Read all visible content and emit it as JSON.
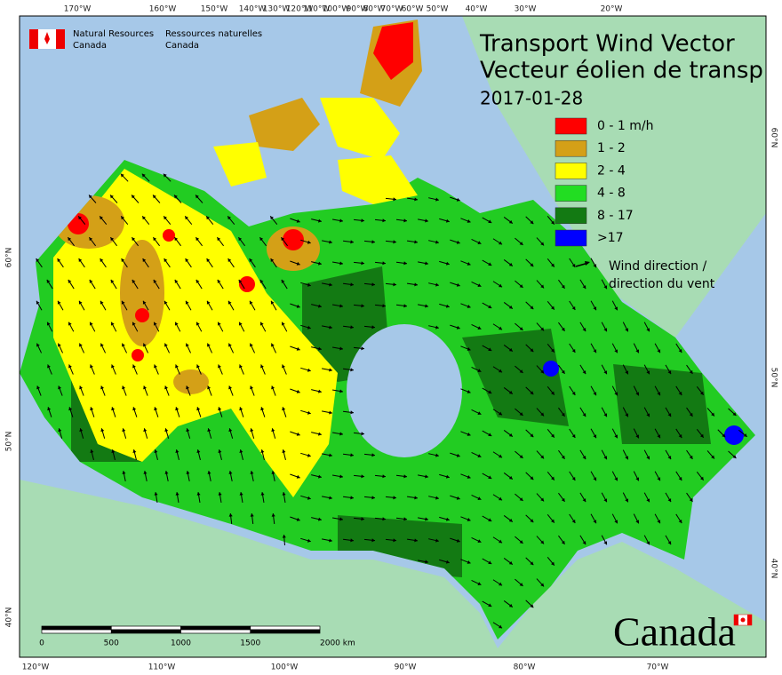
{
  "agency_en": [
    "Natural Resources",
    "Canada"
  ],
  "agency_fr": [
    "Ressources naturelles",
    "Canada"
  ],
  "title": {
    "line1": "Transport Wind Vector",
    "line2": "Vecteur éolien de transp",
    "date": "2017-01-28"
  },
  "legend": {
    "items": [
      {
        "label": "0 - 1 m/h",
        "color": "#ff0000"
      },
      {
        "label": "1 - 2",
        "color": "#d4a017"
      },
      {
        "label": "2 - 4",
        "color": "#ffff00"
      },
      {
        "label": "4 - 8",
        "color": "#22dd22"
      },
      {
        "label": "8 - 17",
        "color": "#137a13"
      },
      {
        "label": ">17",
        "color": "#0000ff"
      }
    ],
    "arrow_label": [
      "Wind direction /",
      "direction du vent"
    ]
  },
  "graticule": {
    "top": [
      "170°W",
      "160°W",
      "150°W",
      "140°W",
      "130°W",
      "120°W",
      "110°W",
      "100°W",
      "90°W",
      "80°W",
      "70°W",
      "60°W",
      "50°W",
      "40°W",
      "30°W",
      "20°W"
    ],
    "bottom": [
      "120°W",
      "110°W",
      "100°W",
      "90°W",
      "80°W",
      "70°W"
    ],
    "left": [
      "60°N",
      "50°N",
      "40°N"
    ],
    "right": [
      "60°N",
      "50°N",
      "40°N"
    ]
  },
  "scale_bar": [
    "0",
    "500",
    "1000",
    "1500",
    "2000 km"
  ],
  "wordmark": "Canada"
}
